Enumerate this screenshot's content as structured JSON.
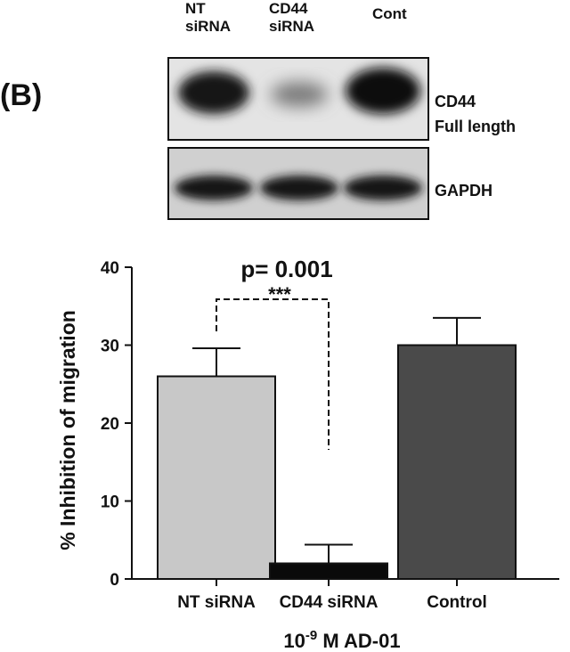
{
  "panel_label": "(B)",
  "blot": {
    "lanes": [
      {
        "line1": "NT",
        "line2": "siRNA"
      },
      {
        "line1": "CD44",
        "line2": "siRNA"
      },
      {
        "line1": "Cont",
        "line2": ""
      }
    ],
    "top_band_label_line1": "CD44",
    "top_band_label_line2": "Full length",
    "bottom_band_label": "GAPDH"
  },
  "chart_data": {
    "type": "bar",
    "categories": [
      "NT siRNA",
      "CD44 siRNA",
      "Control"
    ],
    "values": [
      26,
      2,
      30
    ],
    "errors": [
      3.6,
      2.4,
      3.5
    ],
    "bar_colors": [
      "#c8c8c8",
      "#0a0a0a",
      "#4a4a4a"
    ],
    "ylabel": "% Inhibition of migration",
    "xlabel_base": "10",
    "xlabel_sup": "-9",
    "xlabel_rest": " M AD-01",
    "ylim": [
      0,
      40
    ],
    "yticks": [
      0,
      10,
      20,
      30,
      40
    ],
    "annotation": {
      "pvalue_text": "p= 0.001",
      "stars": "***",
      "between": [
        0,
        1
      ]
    }
  }
}
